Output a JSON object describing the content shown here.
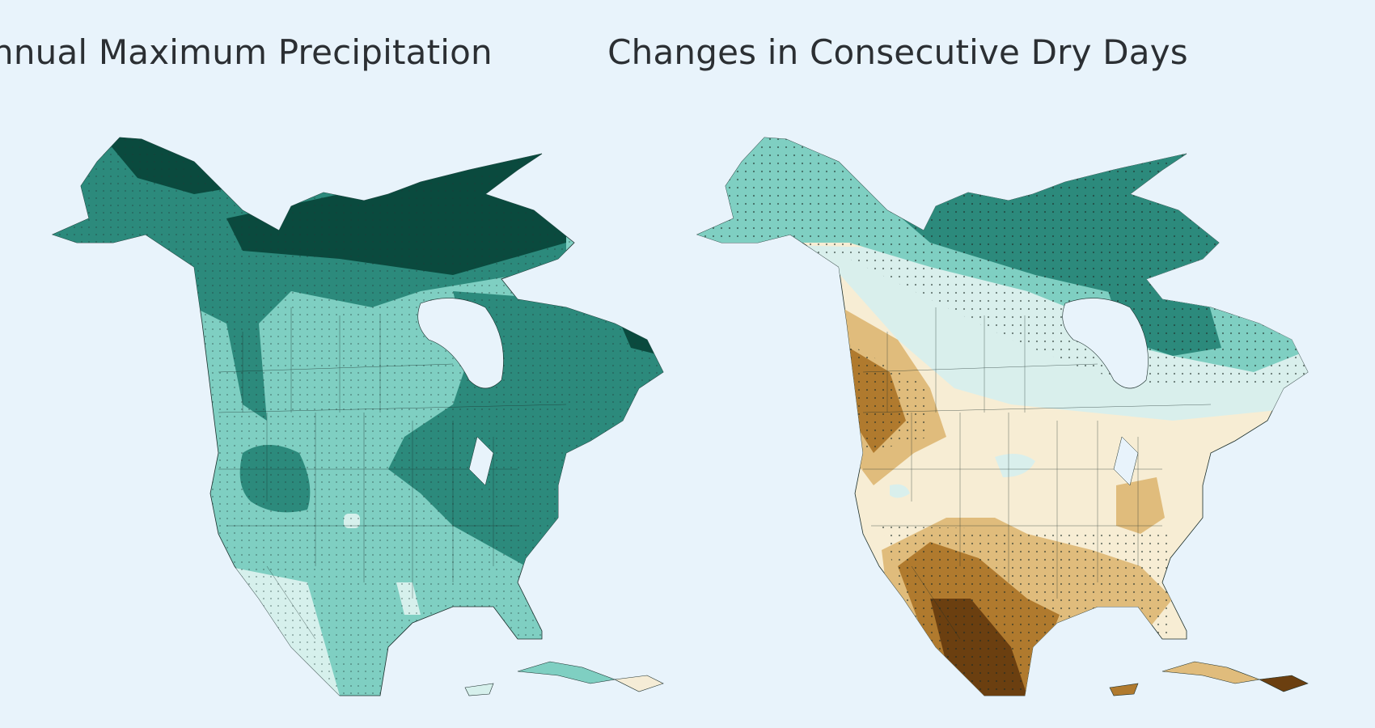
{
  "maps": {
    "left": {
      "title": "Annual Maximum Precipitation",
      "palette": {
        "darkest": "#0a4a3e",
        "dark": "#2c8a7c",
        "mid": "#7fcfc2",
        "light": "#d6f0ec",
        "tan": "#f5ecd6"
      }
    },
    "right": {
      "title": "Changes in Consecutive Dry Days",
      "palette": {
        "dark_teal": "#0a4a3e",
        "teal": "#2c8a7c",
        "mid_teal": "#7fcfc2",
        "pale_teal": "#d9efec",
        "cream": "#f7edd4",
        "tan": "#e0bc7c",
        "brown": "#b07a2e",
        "dark_brown": "#6b3f10"
      }
    }
  },
  "background_color": "#e8f3fb"
}
